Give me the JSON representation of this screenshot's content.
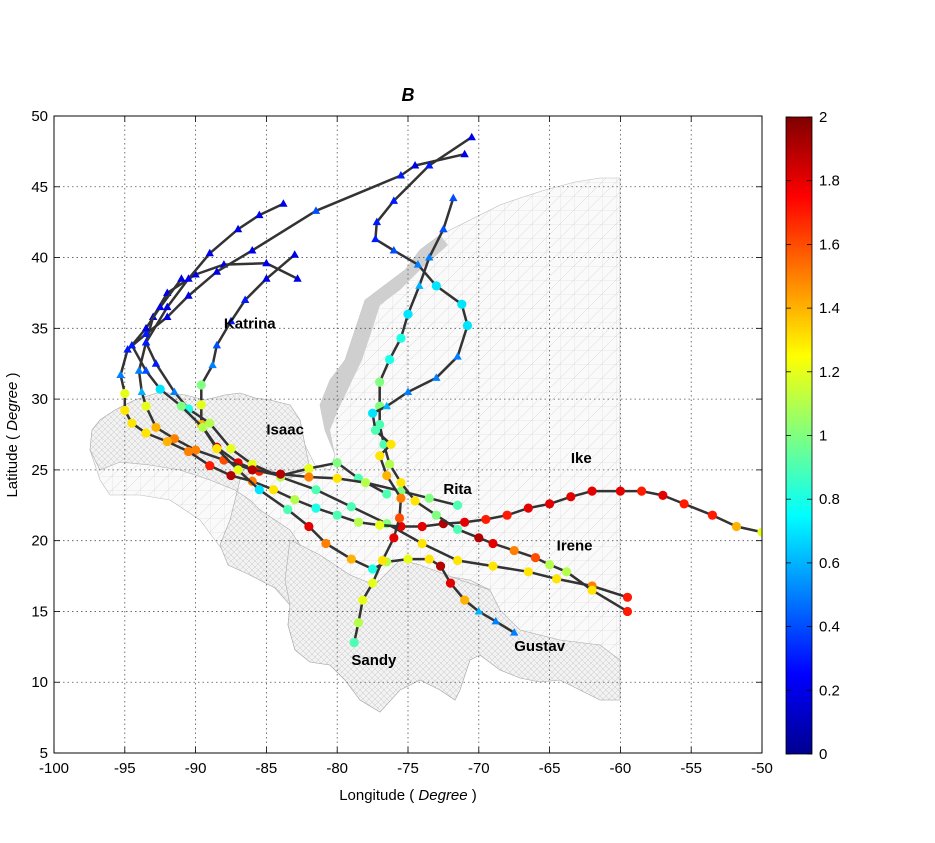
{
  "chart_data": {
    "type": "scatter",
    "title": "B",
    "xlabel_prefix": "Longitude ( ",
    "xlabel_unit": "Degree",
    "xlabel_suffix": " )",
    "ylabel_prefix": "Latitude ( ",
    "ylabel_unit": "Degree",
    "ylabel_suffix": " )",
    "xlim": [
      -100,
      -50
    ],
    "ylim": [
      5,
      50
    ],
    "xticks": [
      -100,
      -95,
      -90,
      -85,
      -80,
      -75,
      -70,
      -65,
      -60,
      -55,
      -50
    ],
    "yticks": [
      5,
      10,
      15,
      20,
      25,
      30,
      35,
      40,
      45,
      50
    ],
    "grid": true,
    "colorbar": {
      "min": 0,
      "max": 2,
      "ticks": [
        0,
        0.2,
        0.4,
        0.6,
        0.8,
        1,
        1.2,
        1.4,
        1.6,
        1.8,
        2
      ],
      "colormap": "jet"
    },
    "series": [
      {
        "name": "Katrina",
        "points": [
          {
            "x": -76.5,
            "y": 23.3,
            "v": 0.9
          },
          {
            "x": -78.5,
            "y": 24.4,
            "v": 0.9
          },
          {
            "x": -80.0,
            "y": 25.5,
            "v": 1.0
          },
          {
            "x": -82.0,
            "y": 25.1,
            "v": 1.2
          },
          {
            "x": -84.0,
            "y": 24.6,
            "v": 1.6
          },
          {
            "x": -85.5,
            "y": 24.9,
            "v": 1.7
          },
          {
            "x": -87.0,
            "y": 25.5,
            "v": 1.8
          },
          {
            "x": -88.5,
            "y": 26.6,
            "v": 1.8
          },
          {
            "x": -89.6,
            "y": 28.2,
            "v": 1.4
          },
          {
            "x": -89.6,
            "y": 29.6,
            "v": 1.2
          },
          {
            "x": -89.6,
            "y": 31.0,
            "v": 1.0
          },
          {
            "x": -88.8,
            "y": 32.4,
            "v": 0.5
          },
          {
            "x": -88.5,
            "y": 33.8,
            "v": 0.4
          },
          {
            "x": -87.5,
            "y": 35.5,
            "v": 0.3
          },
          {
            "x": -86.5,
            "y": 37.0,
            "v": 0.3
          },
          {
            "x": -85.0,
            "y": 38.5,
            "v": 0.2
          },
          {
            "x": -83.0,
            "y": 40.2,
            "v": 0.2
          }
        ]
      },
      {
        "name": "Isaac",
        "points": [
          {
            "x": -59.5,
            "y": 16.0,
            "v": 1.7
          },
          {
            "x": -62.0,
            "y": 16.8,
            "v": 1.5
          },
          {
            "x": -64.5,
            "y": 17.3,
            "v": 1.3
          },
          {
            "x": -66.5,
            "y": 17.8,
            "v": 1.3
          },
          {
            "x": -69.0,
            "y": 18.2,
            "v": 1.3
          },
          {
            "x": -71.5,
            "y": 18.6,
            "v": 1.3
          },
          {
            "x": -74.0,
            "y": 19.8,
            "v": 1.3
          },
          {
            "x": -76.5,
            "y": 21.2,
            "v": 1.0
          },
          {
            "x": -79.0,
            "y": 22.4,
            "v": 0.9
          },
          {
            "x": -81.5,
            "y": 23.6,
            "v": 0.9
          },
          {
            "x": -84.0,
            "y": 24.5,
            "v": 1.1
          },
          {
            "x": -86.0,
            "y": 25.4,
            "v": 1.2
          },
          {
            "x": -87.5,
            "y": 26.5,
            "v": 1.2
          },
          {
            "x": -89.0,
            "y": 28.3,
            "v": 1.1
          },
          {
            "x": -90.5,
            "y": 29.3,
            "v": 0.8
          },
          {
            "x": -91.5,
            "y": 30.5,
            "v": 0.5
          },
          {
            "x": -92.8,
            "y": 32.5,
            "v": 0.3
          },
          {
            "x": -93.5,
            "y": 34.0,
            "v": 0.3
          },
          {
            "x": -93.0,
            "y": 35.8,
            "v": 0.2
          },
          {
            "x": -92.0,
            "y": 37.5,
            "v": 0.2
          },
          {
            "x": -90.0,
            "y": 38.8,
            "v": 0.2
          },
          {
            "x": -88.0,
            "y": 39.5,
            "v": 0.2
          },
          {
            "x": -85.0,
            "y": 39.6,
            "v": 0.2
          },
          {
            "x": -82.8,
            "y": 38.5,
            "v": 0.2
          }
        ]
      },
      {
        "name": "Rita",
        "points": [
          {
            "x": -71.5,
            "y": 22.5,
            "v": 0.9
          },
          {
            "x": -73.5,
            "y": 23.0,
            "v": 1.0
          },
          {
            "x": -75.5,
            "y": 23.5,
            "v": 1.0
          },
          {
            "x": -78.0,
            "y": 24.1,
            "v": 1.1
          },
          {
            "x": -80.0,
            "y": 24.4,
            "v": 1.3
          },
          {
            "x": -82.0,
            "y": 24.5,
            "v": 1.5
          },
          {
            "x": -84.0,
            "y": 24.7,
            "v": 1.9
          },
          {
            "x": -86.0,
            "y": 25.0,
            "v": 1.9
          },
          {
            "x": -88.0,
            "y": 25.7,
            "v": 1.6
          },
          {
            "x": -90.0,
            "y": 26.4,
            "v": 1.5
          },
          {
            "x": -91.5,
            "y": 27.2,
            "v": 1.5
          },
          {
            "x": -92.8,
            "y": 28.0,
            "v": 1.4
          },
          {
            "x": -93.5,
            "y": 29.5,
            "v": 1.2
          },
          {
            "x": -93.8,
            "y": 30.5,
            "v": 0.6
          },
          {
            "x": -94.0,
            "y": 32.0,
            "v": 0.5
          },
          {
            "x": -93.5,
            "y": 34.0,
            "v": 0.3
          },
          {
            "x": -92.0,
            "y": 36.5,
            "v": 0.2
          },
          {
            "x": -90.5,
            "y": 38.5,
            "v": 0.2
          },
          {
            "x": -89.0,
            "y": 40.3,
            "v": 0.2
          },
          {
            "x": -87.0,
            "y": 42.0,
            "v": 0.2
          },
          {
            "x": -85.5,
            "y": 43.0,
            "v": 0.2
          },
          {
            "x": -83.8,
            "y": 43.8,
            "v": 0.2
          }
        ]
      },
      {
        "name": "Ike",
        "points": [
          {
            "x": -50.0,
            "y": 20.6,
            "v": 1.2
          },
          {
            "x": -51.8,
            "y": 21.0,
            "v": 1.4
          },
          {
            "x": -53.5,
            "y": 21.8,
            "v": 1.7
          },
          {
            "x": -55.5,
            "y": 22.6,
            "v": 1.7
          },
          {
            "x": -57.0,
            "y": 23.2,
            "v": 1.8
          },
          {
            "x": -58.5,
            "y": 23.5,
            "v": 1.7
          },
          {
            "x": -60.0,
            "y": 23.5,
            "v": 1.8
          },
          {
            "x": -62.0,
            "y": 23.5,
            "v": 1.8
          },
          {
            "x": -63.5,
            "y": 23.1,
            "v": 1.8
          },
          {
            "x": -65.0,
            "y": 22.6,
            "v": 1.8
          },
          {
            "x": -66.5,
            "y": 22.3,
            "v": 1.8
          },
          {
            "x": -68.0,
            "y": 21.8,
            "v": 1.7
          },
          {
            "x": -69.5,
            "y": 21.5,
            "v": 1.7
          },
          {
            "x": -71.0,
            "y": 21.3,
            "v": 1.8
          },
          {
            "x": -72.5,
            "y": 21.2,
            "v": 1.9
          },
          {
            "x": -74.0,
            "y": 21.0,
            "v": 1.8
          },
          {
            "x": -75.5,
            "y": 21.0,
            "v": 1.8
          },
          {
            "x": -77.0,
            "y": 21.1,
            "v": 1.2
          },
          {
            "x": -78.5,
            "y": 21.3,
            "v": 1.1
          },
          {
            "x": -80.0,
            "y": 21.8,
            "v": 0.9
          },
          {
            "x": -81.5,
            "y": 22.3,
            "v": 0.8
          },
          {
            "x": -83.0,
            "y": 22.9,
            "v": 1.1
          },
          {
            "x": -84.5,
            "y": 23.6,
            "v": 1.3
          },
          {
            "x": -86.0,
            "y": 24.2,
            "v": 1.5
          },
          {
            "x": -87.5,
            "y": 24.6,
            "v": 1.9
          },
          {
            "x": -89.0,
            "y": 25.3,
            "v": 1.7
          },
          {
            "x": -90.5,
            "y": 26.3,
            "v": 1.5
          },
          {
            "x": -92.0,
            "y": 27.0,
            "v": 1.4
          },
          {
            "x": -93.5,
            "y": 27.6,
            "v": 1.3
          },
          {
            "x": -94.5,
            "y": 28.3,
            "v": 1.3
          },
          {
            "x": -95.0,
            "y": 29.2,
            "v": 1.3
          },
          {
            "x": -95.0,
            "y": 30.4,
            "v": 1.2
          },
          {
            "x": -95.3,
            "y": 31.7,
            "v": 0.5
          },
          {
            "x": -94.8,
            "y": 33.5,
            "v": 0.3
          },
          {
            "x": -93.5,
            "y": 34.6,
            "v": 0.3
          },
          {
            "x": -92.0,
            "y": 35.8,
            "v": 0.2
          },
          {
            "x": -90.5,
            "y": 37.3,
            "v": 0.2
          },
          {
            "x": -88.5,
            "y": 39.0,
            "v": 0.2
          },
          {
            "x": -86.0,
            "y": 40.5,
            "v": 0.2
          },
          {
            "x": -81.5,
            "y": 43.3,
            "v": 0.4
          },
          {
            "x": -75.5,
            "y": 45.8,
            "v": 0.3
          },
          {
            "x": -74.5,
            "y": 46.5,
            "v": 0.2
          },
          {
            "x": -71.0,
            "y": 47.3,
            "v": 0.2
          }
        ]
      },
      {
        "name": "Irene",
        "points": [
          {
            "x": -59.5,
            "y": 15.0,
            "v": 1.7
          },
          {
            "x": -62.0,
            "y": 16.5,
            "v": 1.3
          },
          {
            "x": -63.8,
            "y": 17.8,
            "v": 1.1
          },
          {
            "x": -65.0,
            "y": 18.3,
            "v": 1.1
          },
          {
            "x": -66.0,
            "y": 18.8,
            "v": 1.6
          },
          {
            "x": -67.5,
            "y": 19.3,
            "v": 1.5
          },
          {
            "x": -69.0,
            "y": 19.8,
            "v": 1.8
          },
          {
            "x": -70.0,
            "y": 20.2,
            "v": 1.9
          },
          {
            "x": -71.5,
            "y": 20.8,
            "v": 0.9
          },
          {
            "x": -73.0,
            "y": 21.8,
            "v": 1.0
          },
          {
            "x": -74.5,
            "y": 22.8,
            "v": 1.3
          },
          {
            "x": -75.5,
            "y": 24.1,
            "v": 1.3
          },
          {
            "x": -76.3,
            "y": 25.4,
            "v": 1.1
          },
          {
            "x": -76.7,
            "y": 26.8,
            "v": 0.9
          },
          {
            "x": -77.0,
            "y": 28.2,
            "v": 0.9
          },
          {
            "x": -77.0,
            "y": 29.5,
            "v": 1.0
          },
          {
            "x": -77.0,
            "y": 31.2,
            "v": 1.0
          },
          {
            "x": -76.3,
            "y": 32.8,
            "v": 0.8
          },
          {
            "x": -75.5,
            "y": 34.3,
            "v": 0.8
          },
          {
            "x": -75.0,
            "y": 36.0,
            "v": 0.7
          },
          {
            "x": -74.2,
            "y": 38.0,
            "v": 0.6
          },
          {
            "x": -73.5,
            "y": 40.0,
            "v": 0.5
          },
          {
            "x": -72.5,
            "y": 42.0,
            "v": 0.4
          },
          {
            "x": -71.8,
            "y": 44.2,
            "v": 0.4
          }
        ]
      },
      {
        "name": "Gustav",
        "points": [
          {
            "x": -67.5,
            "y": 13.5,
            "v": 0.5
          },
          {
            "x": -68.8,
            "y": 14.3,
            "v": 0.5
          },
          {
            "x": -70.0,
            "y": 15.0,
            "v": 0.6
          },
          {
            "x": -71.0,
            "y": 15.8,
            "v": 1.4
          },
          {
            "x": -72.0,
            "y": 17.0,
            "v": 1.8
          },
          {
            "x": -72.7,
            "y": 18.2,
            "v": 1.9
          },
          {
            "x": -73.5,
            "y": 18.7,
            "v": 1.3
          },
          {
            "x": -75.0,
            "y": 18.7,
            "v": 1.2
          },
          {
            "x": -76.5,
            "y": 18.5,
            "v": 1.1
          },
          {
            "x": -77.5,
            "y": 18.0,
            "v": 0.8
          },
          {
            "x": -79.0,
            "y": 18.7,
            "v": 1.4
          },
          {
            "x": -80.8,
            "y": 19.8,
            "v": 1.5
          },
          {
            "x": -82.0,
            "y": 21.0,
            "v": 1.8
          },
          {
            "x": -83.5,
            "y": 22.2,
            "v": 0.9
          },
          {
            "x": -85.5,
            "y": 23.6,
            "v": 0.7
          },
          {
            "x": -87.0,
            "y": 25.0,
            "v": 1.2
          },
          {
            "x": -88.5,
            "y": 26.5,
            "v": 1.3
          },
          {
            "x": -89.5,
            "y": 28.0,
            "v": 1.1
          },
          {
            "x": -91.0,
            "y": 29.5,
            "v": 1.0
          },
          {
            "x": -92.5,
            "y": 30.7,
            "v": 0.7
          },
          {
            "x": -93.5,
            "y": 32.0,
            "v": 0.4
          },
          {
            "x": -94.5,
            "y": 33.8,
            "v": 0.3
          },
          {
            "x": -93.5,
            "y": 35.0,
            "v": 0.2
          },
          {
            "x": -92.5,
            "y": 36.5,
            "v": 0.2
          },
          {
            "x": -91.0,
            "y": 38.5,
            "v": 0.2
          }
        ]
      },
      {
        "name": "Sandy",
        "points": [
          {
            "x": -78.8,
            "y": 12.8,
            "v": 0.9
          },
          {
            "x": -78.5,
            "y": 14.2,
            "v": 1.1
          },
          {
            "x": -78.2,
            "y": 15.8,
            "v": 1.2
          },
          {
            "x": -77.5,
            "y": 17.0,
            "v": 1.2
          },
          {
            "x": -76.8,
            "y": 18.6,
            "v": 1.3
          },
          {
            "x": -76.0,
            "y": 20.2,
            "v": 1.8
          },
          {
            "x": -75.6,
            "y": 21.6,
            "v": 1.6
          },
          {
            "x": -75.5,
            "y": 23.0,
            "v": 1.5
          },
          {
            "x": -76.5,
            "y": 24.6,
            "v": 1.4
          },
          {
            "x": -77.0,
            "y": 26.0,
            "v": 1.3
          },
          {
            "x": -76.2,
            "y": 26.8,
            "v": 1.3
          },
          {
            "x": -77.3,
            "y": 27.8,
            "v": 0.9
          },
          {
            "x": -77.5,
            "y": 29.0,
            "v": 0.7
          },
          {
            "x": -76.5,
            "y": 29.5,
            "v": 0.6
          },
          {
            "x": -75.0,
            "y": 30.5,
            "v": 0.5
          },
          {
            "x": -73.0,
            "y": 31.5,
            "v": 0.5
          },
          {
            "x": -71.5,
            "y": 33.0,
            "v": 0.5
          },
          {
            "x": -70.8,
            "y": 35.2,
            "v": 0.7
          },
          {
            "x": -71.2,
            "y": 36.7,
            "v": 0.7
          },
          {
            "x": -73.0,
            "y": 38.0,
            "v": 0.7
          },
          {
            "x": -74.3,
            "y": 39.5,
            "v": 0.5
          },
          {
            "x": -76.0,
            "y": 40.5,
            "v": 0.4
          },
          {
            "x": -77.3,
            "y": 41.3,
            "v": 0.3
          },
          {
            "x": -77.2,
            "y": 42.5,
            "v": 0.3
          },
          {
            "x": -76.0,
            "y": 44.0,
            "v": 0.3
          },
          {
            "x": -73.5,
            "y": 46.5,
            "v": 0.3
          },
          {
            "x": -70.5,
            "y": 48.5,
            "v": 0.2
          }
        ]
      }
    ],
    "labels": [
      {
        "text": "Katrina",
        "x": -88,
        "y": 35
      },
      {
        "text": "Isaac",
        "x": -85,
        "y": 27.5
      },
      {
        "text": "Rita",
        "x": -72.5,
        "y": 23.3
      },
      {
        "text": "Ike",
        "x": -63.5,
        "y": 25.5
      },
      {
        "text": "Irene",
        "x": -64.5,
        "y": 19.3
      },
      {
        "text": "Gustav",
        "x": -67.5,
        "y": 12.2
      },
      {
        "text": "Sandy",
        "x": -79,
        "y": 11.2
      }
    ]
  }
}
